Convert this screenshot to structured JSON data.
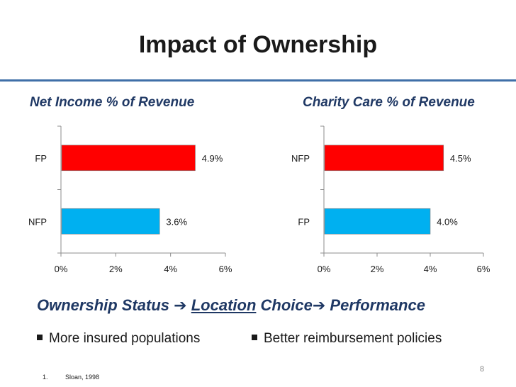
{
  "slide": {
    "title": "Impact of Ownership",
    "flow": {
      "part1": "Ownership Status",
      "arrow": "➔",
      "location": "Location",
      "choice": " Choice",
      "performance": " Performance"
    },
    "bullets": [
      "More insured populations",
      "Better reimbursement policies"
    ],
    "page_number": "8",
    "footnote": {
      "number": "1.",
      "text": "Sloan, 1998"
    }
  },
  "chart_data": [
    {
      "type": "bar",
      "orientation": "horizontal",
      "title": "Net Income % of Revenue",
      "categories": [
        "FP",
        "NFP"
      ],
      "values": [
        4.9,
        3.6
      ],
      "value_labels": [
        "4.9%",
        "3.6%"
      ],
      "colors": [
        "#ff0000",
        "#00b0f0"
      ],
      "xlim": [
        0,
        6
      ],
      "ticks": [
        "0%",
        "2%",
        "4%",
        "6%"
      ],
      "grid": false
    },
    {
      "type": "bar",
      "orientation": "horizontal",
      "title": "Charity Care % of Revenue",
      "categories": [
        "NFP",
        "FP"
      ],
      "values": [
        4.5,
        4.0
      ],
      "value_labels": [
        "4.5%",
        "4.0%"
      ],
      "colors": [
        "#ff0000",
        "#00b0f0"
      ],
      "xlim": [
        0,
        6
      ],
      "ticks": [
        "0%",
        "2%",
        "4%",
        "6%"
      ],
      "grid": false
    }
  ]
}
